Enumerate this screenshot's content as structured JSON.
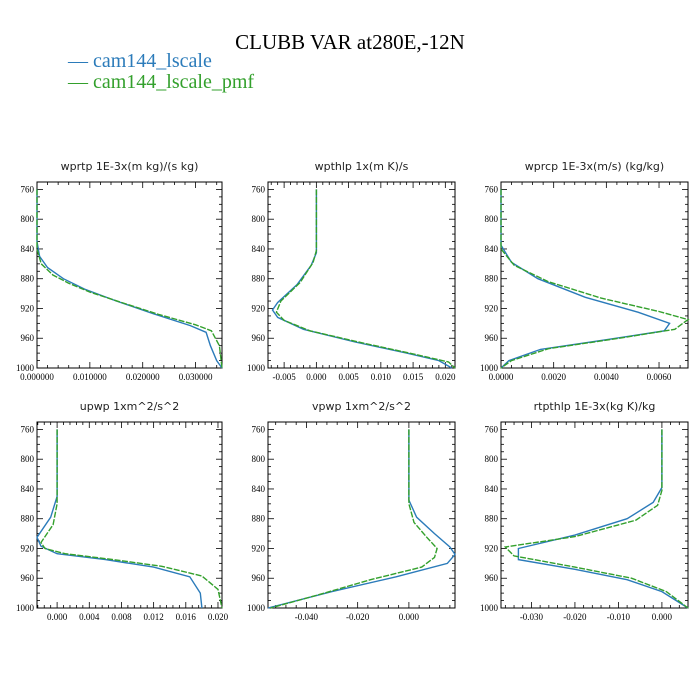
{
  "title": "CLUBB VAR at280E,-12N",
  "legend": [
    {
      "label": "cam144_lscale",
      "color": "#2b7bba"
    },
    {
      "label": "cam144_lscale_pmf",
      "color": "#33a02c"
    }
  ],
  "chart_data": [
    {
      "type": "line",
      "title": "wprtp  1E-3x(m kg)/(s kg)",
      "xlim": [
        0,
        0.035
      ],
      "ylim": [
        1000,
        750
      ],
      "xticks": [
        0,
        0.01,
        0.02,
        0.03
      ],
      "xtick_labels": [
        "0.000000",
        "0.010000",
        "0.020000",
        "0.030000"
      ],
      "yticks": [
        760,
        800,
        840,
        880,
        920,
        960,
        1000
      ],
      "series": [
        {
          "name": "cam144_lscale",
          "points": [
            [
              0,
              760
            ],
            [
              0,
              830
            ],
            [
              0.0005,
              850
            ],
            [
              0.002,
              865
            ],
            [
              0.005,
              880
            ],
            [
              0.009,
              894
            ],
            [
              0.015,
              910
            ],
            [
              0.022,
              927
            ],
            [
              0.029,
              943
            ],
            [
              0.032,
              952
            ],
            [
              0.0328,
              970
            ],
            [
              0.034,
              990
            ],
            [
              0.035,
              1000
            ]
          ]
        },
        {
          "name": "cam144_lscale_pmf",
          "points": [
            [
              0,
              760
            ],
            [
              0,
              840
            ],
            [
              0.0008,
              860
            ],
            [
              0.003,
              875
            ],
            [
              0.006,
              886
            ],
            [
              0.01,
              898
            ],
            [
              0.016,
              912
            ],
            [
              0.023,
              928
            ],
            [
              0.03,
              942
            ],
            [
              0.033,
              950
            ],
            [
              0.0345,
              970
            ],
            [
              0.035,
              1000
            ]
          ]
        }
      ]
    },
    {
      "type": "line",
      "title": "wpthlp  1x(m K)/s",
      "xlim": [
        -0.0075,
        0.0215
      ],
      "ylim": [
        1000,
        750
      ],
      "xticks": [
        -0.005,
        0,
        0.005,
        0.01,
        0.015,
        0.02
      ],
      "xtick_labels": [
        "-0.005",
        "0.000",
        "0.005",
        "0.010",
        "0.015",
        "0.020"
      ],
      "yticks": [
        760,
        800,
        840,
        880,
        920,
        960,
        1000
      ],
      "series": [
        {
          "name": "cam144_lscale",
          "points": [
            [
              0,
              760
            ],
            [
              0,
              845
            ],
            [
              -0.0008,
              862
            ],
            [
              -0.003,
              888
            ],
            [
              -0.006,
              912
            ],
            [
              -0.0068,
              922
            ],
            [
              -0.006,
              932
            ],
            [
              -0.002,
              948
            ],
            [
              0.006,
              965
            ],
            [
              0.014,
              980
            ],
            [
              0.019,
              990
            ],
            [
              0.021,
              1000
            ]
          ]
        },
        {
          "name": "cam144_lscale_pmf",
          "points": [
            [
              0,
              760
            ],
            [
              0,
              842
            ],
            [
              -0.0005,
              858
            ],
            [
              -0.0025,
              885
            ],
            [
              -0.0055,
              910
            ],
            [
              -0.0062,
              925
            ],
            [
              -0.005,
              936
            ],
            [
              -0.001,
              950
            ],
            [
              0.007,
              966
            ],
            [
              0.015,
              981
            ],
            [
              0.0205,
              992
            ],
            [
              0.0215,
              1000
            ]
          ]
        }
      ]
    },
    {
      "type": "line",
      "title": "wprcp  1E-3x(m/s) (kg/kg)",
      "xlim": [
        0,
        0.0071
      ],
      "ylim": [
        1000,
        750
      ],
      "xticks": [
        0,
        0.002,
        0.004,
        0.006
      ],
      "xtick_labels": [
        "0.0000",
        "0.0020",
        "0.0040",
        "0.0060"
      ],
      "yticks": [
        760,
        800,
        840,
        880,
        920,
        960,
        1000
      ],
      "series": [
        {
          "name": "cam144_lscale",
          "points": [
            [
              0,
              760
            ],
            [
              0,
              835
            ],
            [
              0.0004,
              858
            ],
            [
              0.0014,
              880
            ],
            [
              0.0032,
              905
            ],
            [
              0.0052,
              925
            ],
            [
              0.0064,
              940
            ],
            [
              0.0062,
              950
            ],
            [
              0.004,
              962
            ],
            [
              0.0015,
              975
            ],
            [
              0.0003,
              990
            ],
            [
              0,
              1000
            ]
          ]
        },
        {
          "name": "cam144_lscale_pmf",
          "points": [
            [
              0,
              760
            ],
            [
              0,
              840
            ],
            [
              0.0005,
              862
            ],
            [
              0.0018,
              884
            ],
            [
              0.0038,
              906
            ],
            [
              0.006,
              924
            ],
            [
              0.0071,
              935
            ],
            [
              0.0066,
              948
            ],
            [
              0.0045,
              960
            ],
            [
              0.0018,
              974
            ],
            [
              0.0004,
              990
            ],
            [
              0,
              1000
            ]
          ]
        }
      ]
    },
    {
      "type": "line",
      "title": "upwp  1xm^2/s^2",
      "xlim": [
        -0.0025,
        0.0205
      ],
      "ylim": [
        1000,
        750
      ],
      "xticks": [
        0,
        0.004,
        0.008,
        0.012,
        0.016,
        0.02
      ],
      "xtick_labels": [
        "0.000",
        "0.004",
        "0.008",
        "0.012",
        "0.016",
        "0.020"
      ],
      "yticks": [
        760,
        800,
        840,
        880,
        920,
        960,
        1000
      ],
      "series": [
        {
          "name": "cam144_lscale",
          "points": [
            [
              0,
              760
            ],
            [
              0,
              850
            ],
            [
              -0.0008,
              878
            ],
            [
              -0.0025,
              905
            ],
            [
              -0.002,
              917
            ],
            [
              0,
              927
            ],
            [
              0.006,
              935
            ],
            [
              0.012,
              945
            ],
            [
              0.0165,
              958
            ],
            [
              0.0178,
              980
            ],
            [
              0.018,
              1000
            ]
          ]
        },
        {
          "name": "cam144_lscale_pmf",
          "points": [
            [
              0,
              760
            ],
            [
              0,
              860
            ],
            [
              -0.0005,
              888
            ],
            [
              -0.002,
              912
            ],
            [
              -0.0015,
              920
            ],
            [
              0.001,
              927
            ],
            [
              0.007,
              935
            ],
            [
              0.013,
              944
            ],
            [
              0.018,
              957
            ],
            [
              0.02,
              975
            ],
            [
              0.0205,
              1000
            ]
          ]
        }
      ]
    },
    {
      "type": "line",
      "title": "vpwp  1xm^2/s^2",
      "xlim": [
        -0.055,
        0.018
      ],
      "ylim": [
        1000,
        750
      ],
      "xticks": [
        -0.04,
        -0.02,
        0
      ],
      "xtick_labels": [
        "-0.040",
        "-0.020",
        "0.000"
      ],
      "yticks": [
        760,
        800,
        840,
        880,
        920,
        960,
        1000
      ],
      "series": [
        {
          "name": "cam144_lscale",
          "points": [
            [
              0,
              760
            ],
            [
              0,
              855
            ],
            [
              0.003,
              878
            ],
            [
              0.01,
              900
            ],
            [
              0.016,
              918
            ],
            [
              0.018,
              928
            ],
            [
              0.015,
              940
            ],
            [
              -0.005,
              958
            ],
            [
              -0.03,
              978
            ],
            [
              -0.055,
              1000
            ]
          ]
        },
        {
          "name": "cam144_lscale_pmf",
          "points": [
            [
              0,
              760
            ],
            [
              0,
              860
            ],
            [
              0.002,
              885
            ],
            [
              0.007,
              905
            ],
            [
              0.011,
              920
            ],
            [
              0.01,
              932
            ],
            [
              0.005,
              945
            ],
            [
              -0.015,
              962
            ],
            [
              -0.035,
              982
            ],
            [
              -0.054,
              1000
            ]
          ]
        }
      ]
    },
    {
      "type": "line",
      "title": "rtpthlp  1E-3x(kg K)/kg",
      "xlim": [
        -0.037,
        0.006
      ],
      "ylim": [
        1000,
        750
      ],
      "xticks": [
        -0.03,
        -0.02,
        -0.01,
        0
      ],
      "xtick_labels": [
        "-0.030",
        "-0.020",
        "-0.010",
        "0.000"
      ],
      "yticks": [
        760,
        800,
        840,
        880,
        920,
        960,
        1000
      ],
      "series": [
        {
          "name": "cam144_lscale",
          "points": [
            [
              0,
              760
            ],
            [
              0,
              838
            ],
            [
              -0.002,
              858
            ],
            [
              -0.008,
              880
            ],
            [
              -0.02,
              902
            ],
            [
              -0.033,
              920
            ],
            [
              -0.033,
              935
            ],
            [
              -0.02,
              948
            ],
            [
              -0.008,
              962
            ],
            [
              0,
              978
            ],
            [
              0.006,
              1000
            ]
          ]
        },
        {
          "name": "cam144_lscale_pmf",
          "points": [
            [
              0,
              760
            ],
            [
              0,
              842
            ],
            [
              -0.001,
              862
            ],
            [
              -0.006,
              882
            ],
            [
              -0.02,
              904
            ],
            [
              -0.036,
              918
            ],
            [
              -0.034,
              930
            ],
            [
              -0.02,
              945
            ],
            [
              -0.007,
              960
            ],
            [
              0.001,
              978
            ],
            [
              0.006,
              1000
            ]
          ]
        }
      ]
    }
  ]
}
